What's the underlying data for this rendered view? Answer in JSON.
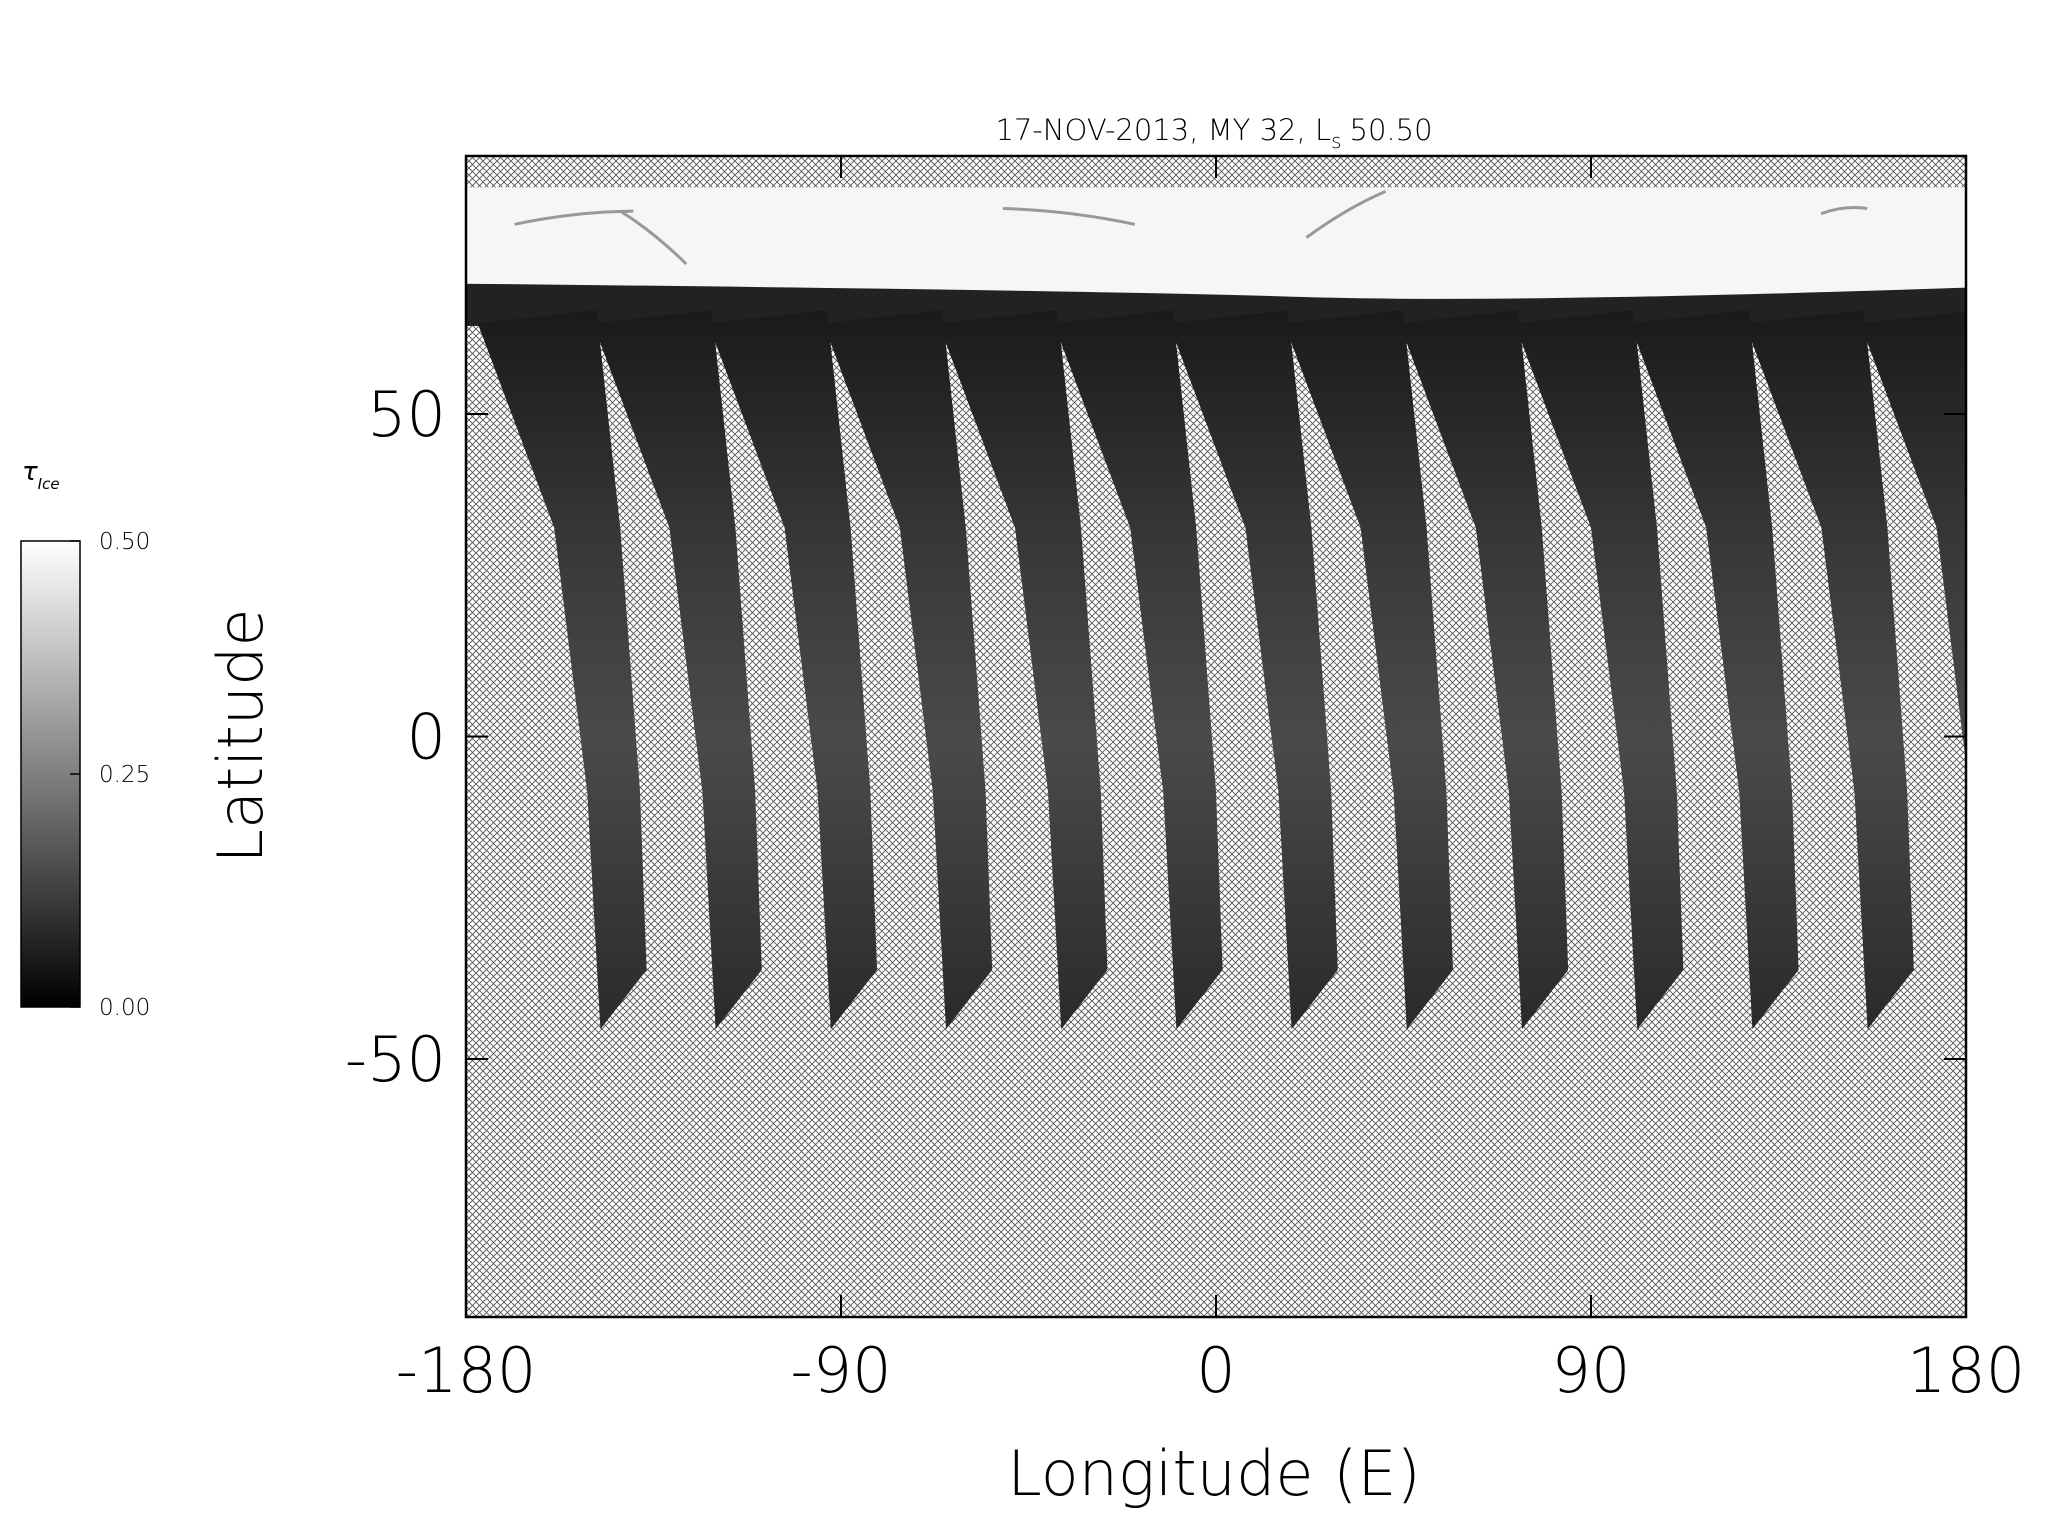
{
  "chart_data": {
    "type": "map",
    "title": "17-NOV-2013, MY 32,  L",
    "title_subscript": "s",
    "title_value": "50.50",
    "xlabel": "Longitude (E)",
    "ylabel": "Latitude",
    "xlim": [
      -180,
      180
    ],
    "xticks": [
      -180,
      -90,
      0,
      90,
      180
    ],
    "ylim": [
      -90,
      90
    ],
    "yticks": [
      -50,
      0,
      50
    ],
    "colorbar": {
      "label": "τ",
      "label_subscript": "Ice",
      "lim": [
        0,
        0.5
      ],
      "ticks": [
        {
          "value": 0,
          "label": "0.00"
        },
        {
          "value": 0.25,
          "label": "0.25"
        },
        {
          "value": 0.5,
          "label": "0.50"
        }
      ],
      "colors": [
        "#000000",
        "#ffffff"
      ]
    }
  }
}
